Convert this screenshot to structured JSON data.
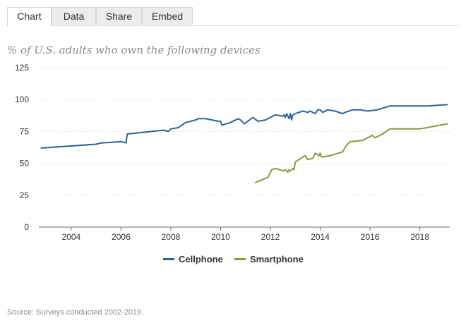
{
  "tabs": [
    {
      "label": "Chart",
      "active": true
    },
    {
      "label": "Data",
      "active": false
    },
    {
      "label": "Share",
      "active": false
    },
    {
      "label": "Embed",
      "active": false
    }
  ],
  "subtitle": "% of U.S. adults who own the following devices",
  "source": "Source: Surveys conducted 2002-2019.",
  "colors": {
    "cellphone": "#2a6496",
    "smartphone": "#8a9a3c",
    "grid": "#cfcfcf",
    "axis": "#666666"
  },
  "chart_data": {
    "type": "line",
    "title": "",
    "xlabel": "",
    "ylabel": "",
    "xlim": [
      2002.7,
      2019.2
    ],
    "ylim": [
      0,
      125
    ],
    "grid": true,
    "legend": "bottom-center",
    "x_ticks": [
      2004,
      2006,
      2008,
      2010,
      2012,
      2014,
      2016,
      2018
    ],
    "y_ticks": [
      0,
      25,
      50,
      75,
      100,
      125
    ],
    "series": [
      {
        "name": "Cellphone",
        "color": "#2a6496",
        "points": [
          [
            2002.8,
            62
          ],
          [
            2005.0,
            65
          ],
          [
            2005.2,
            66
          ],
          [
            2006.0,
            67
          ],
          [
            2006.2,
            66
          ],
          [
            2006.25,
            73
          ],
          [
            2007.7,
            76
          ],
          [
            2007.9,
            75
          ],
          [
            2008.0,
            77
          ],
          [
            2008.3,
            78
          ],
          [
            2008.6,
            82
          ],
          [
            2009.0,
            84
          ],
          [
            2009.1,
            85
          ],
          [
            2009.4,
            85
          ],
          [
            2009.9,
            83
          ],
          [
            2010.0,
            83
          ],
          [
            2010.05,
            80
          ],
          [
            2010.4,
            82
          ],
          [
            2010.7,
            85
          ],
          [
            2010.8,
            84
          ],
          [
            2010.95,
            81
          ],
          [
            2011.3,
            86
          ],
          [
            2011.5,
            83
          ],
          [
            2011.8,
            84
          ],
          [
            2012.0,
            86
          ],
          [
            2012.2,
            88
          ],
          [
            2012.5,
            87
          ],
          [
            2012.55,
            88
          ],
          [
            2012.6,
            86
          ],
          [
            2012.65,
            89
          ],
          [
            2012.75,
            85
          ],
          [
            2012.8,
            89
          ],
          [
            2012.85,
            84
          ],
          [
            2012.9,
            88
          ],
          [
            2013.0,
            89
          ],
          [
            2013.3,
            91
          ],
          [
            2013.5,
            90
          ],
          [
            2013.6,
            91
          ],
          [
            2013.8,
            89
          ],
          [
            2013.9,
            92
          ],
          [
            2014.0,
            92
          ],
          [
            2014.1,
            90
          ],
          [
            2014.3,
            92
          ],
          [
            2014.6,
            91
          ],
          [
            2014.9,
            89
          ],
          [
            2015.0,
            90
          ],
          [
            2015.3,
            92
          ],
          [
            2015.6,
            92
          ],
          [
            2015.9,
            91
          ],
          [
            2016.3,
            92
          ],
          [
            2016.8,
            95
          ],
          [
            2018.0,
            95
          ],
          [
            2018.3,
            95
          ],
          [
            2019.1,
            96
          ]
        ]
      },
      {
        "name": "Smartphone",
        "color": "#8a9a3c",
        "points": [
          [
            2011.4,
            35
          ],
          [
            2011.9,
            39
          ],
          [
            2012.05,
            45
          ],
          [
            2012.2,
            46
          ],
          [
            2012.55,
            44
          ],
          [
            2012.6,
            45
          ],
          [
            2012.7,
            43
          ],
          [
            2012.75,
            45
          ],
          [
            2012.8,
            44
          ],
          [
            2012.9,
            46
          ],
          [
            2012.95,
            45
          ],
          [
            2013.0,
            51
          ],
          [
            2013.15,
            53
          ],
          [
            2013.3,
            55
          ],
          [
            2013.4,
            56
          ],
          [
            2013.5,
            53
          ],
          [
            2013.7,
            54
          ],
          [
            2013.8,
            58
          ],
          [
            2013.95,
            56
          ],
          [
            2014.0,
            58
          ],
          [
            2014.05,
            55
          ],
          [
            2014.4,
            56
          ],
          [
            2014.9,
            59
          ],
          [
            2015.05,
            64
          ],
          [
            2015.2,
            67
          ],
          [
            2015.7,
            68
          ],
          [
            2016.1,
            72
          ],
          [
            2016.2,
            70
          ],
          [
            2016.5,
            73
          ],
          [
            2016.8,
            77
          ],
          [
            2018.0,
            77
          ],
          [
            2019.1,
            81
          ]
        ]
      }
    ]
  }
}
